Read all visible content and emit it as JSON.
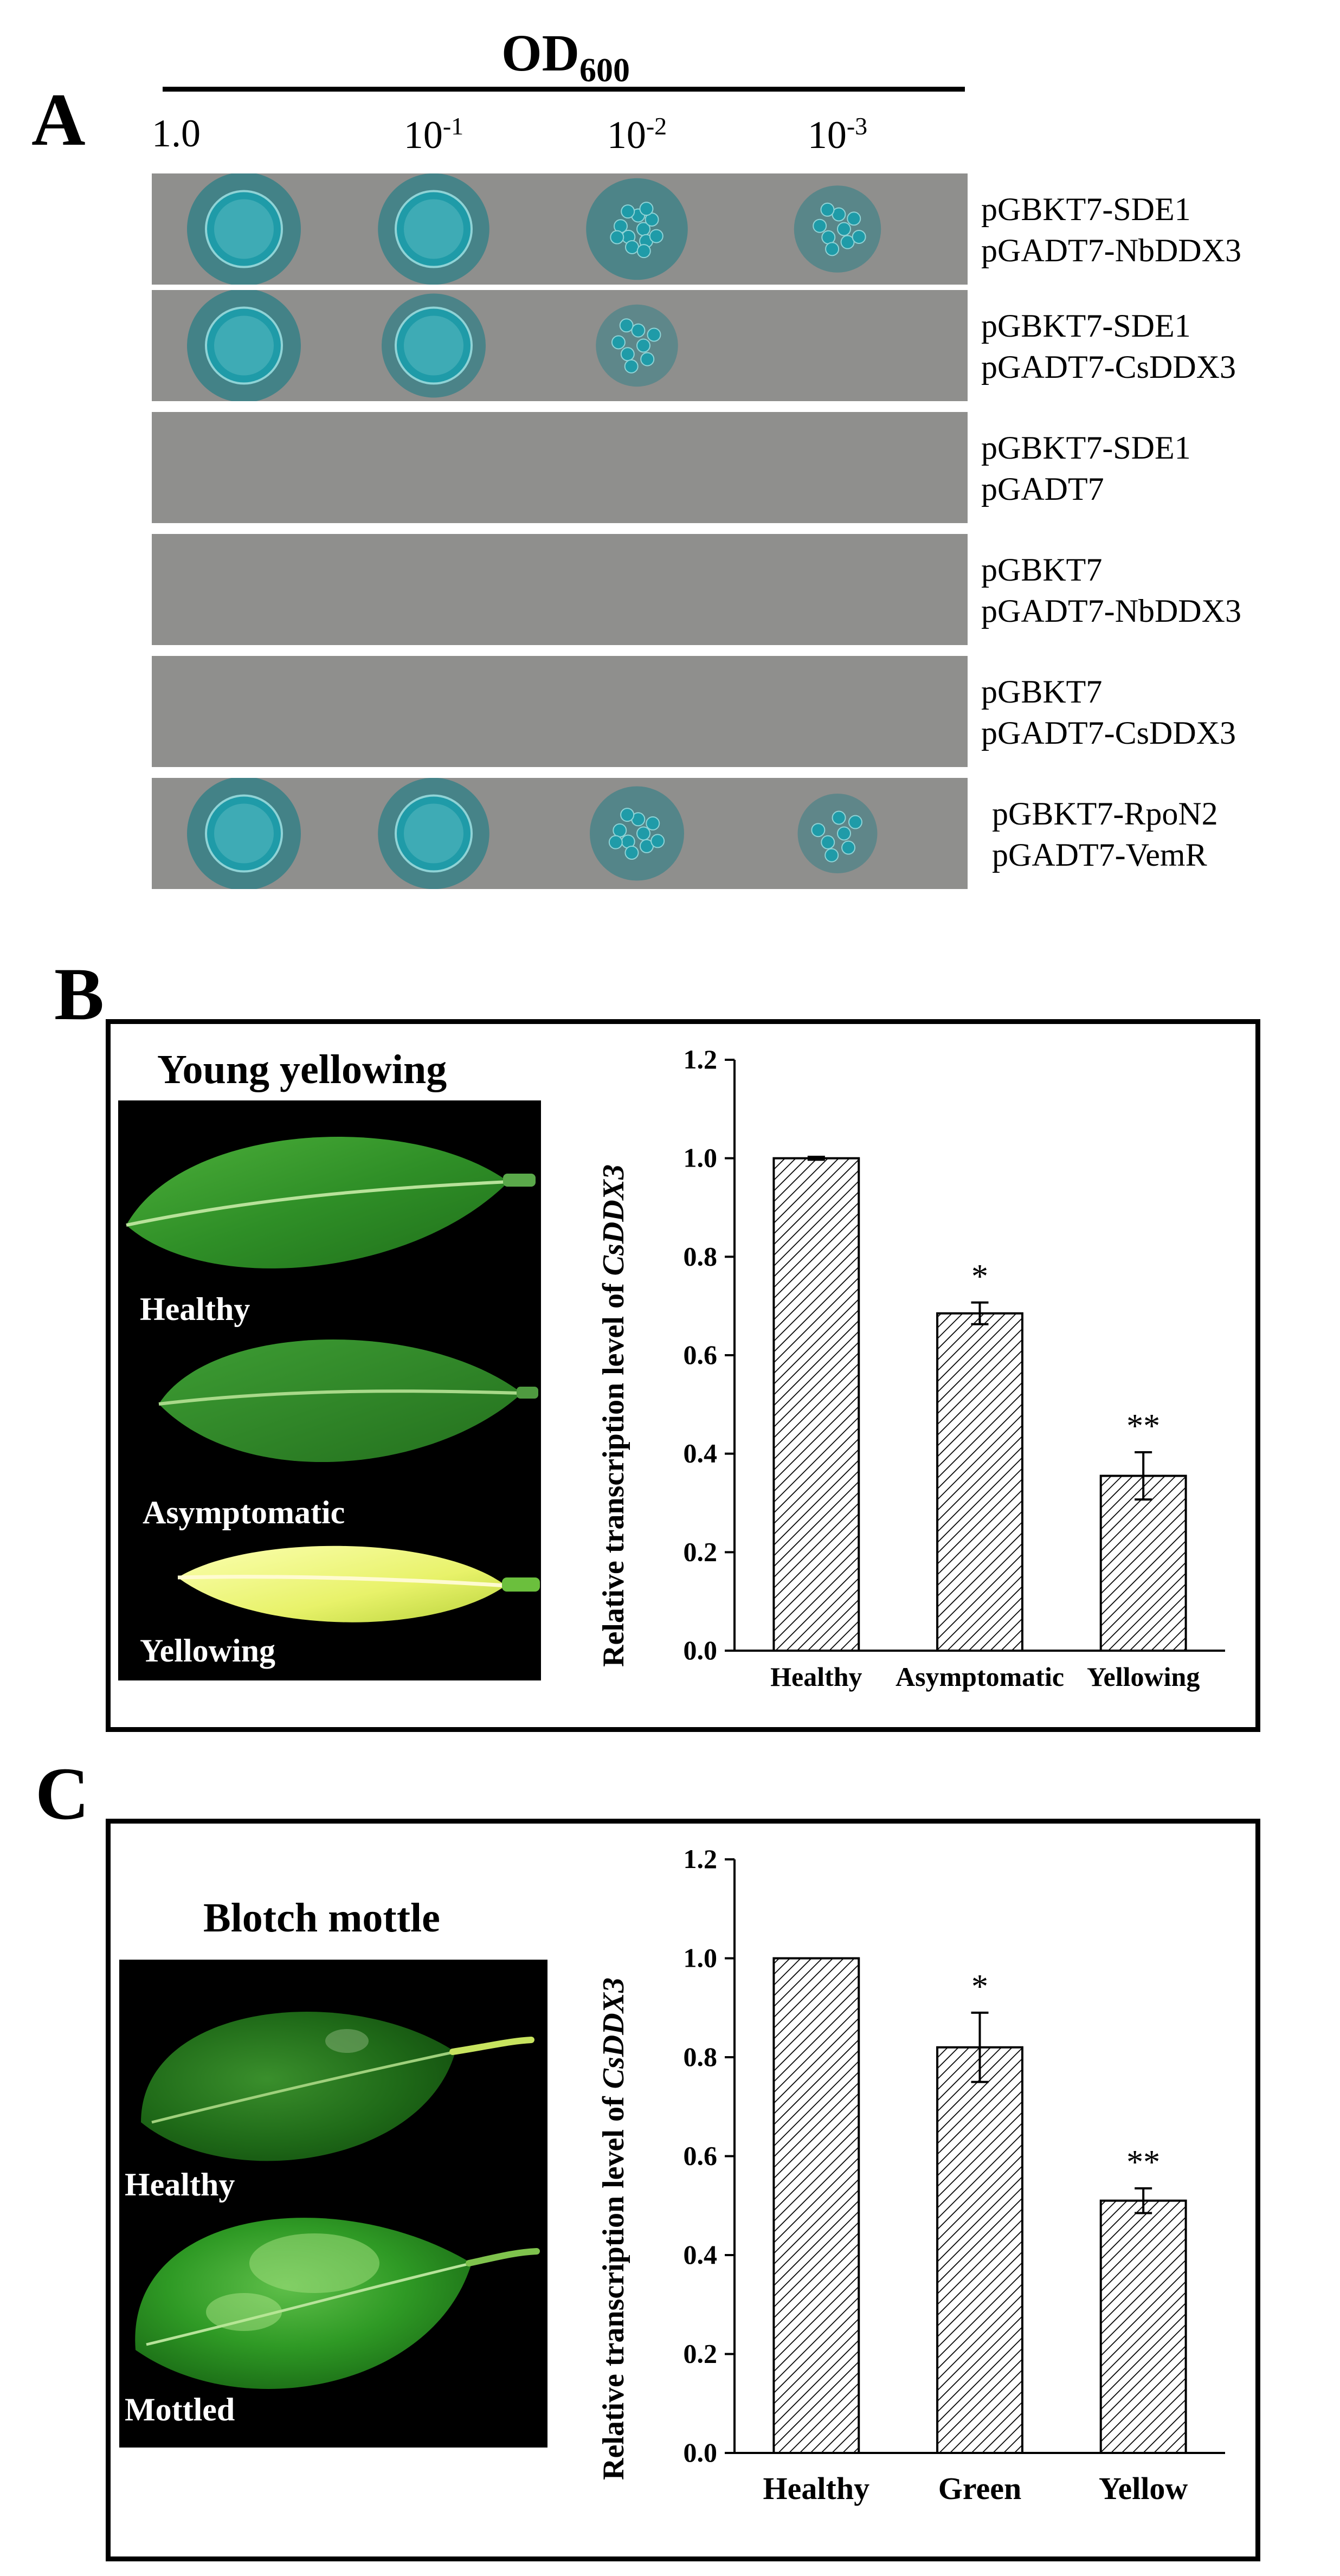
{
  "panel_a": {
    "label": "A",
    "od_label_main": "OD",
    "od_label_sub": "600",
    "dilutions": [
      {
        "base": "1.0",
        "exp": ""
      },
      {
        "base": "10",
        "exp": "-1"
      },
      {
        "base": "10",
        "exp": "-2"
      },
      {
        "base": "10",
        "exp": "-3"
      }
    ],
    "rows": [
      {
        "line1": "pGBKT7-SDE1",
        "line2": "pGADT7-NbDDX3",
        "growth": [
          1,
          0.95,
          0.75,
          0.45
        ]
      },
      {
        "line1": "pGBKT7-SDE1",
        "line2": "pGADT7-CsDDX3",
        "growth": [
          1,
          0.8,
          0.35,
          0
        ]
      },
      {
        "line1": "pGBKT7-SDE1",
        "line2": "pGADT7",
        "growth": [
          0,
          0,
          0,
          0
        ]
      },
      {
        "line1": "pGBKT7",
        "line2": "pGADT7-NbDDX3",
        "growth": [
          0,
          0,
          0,
          0
        ]
      },
      {
        "line1": "pGBKT7",
        "line2": "pGADT7-CsDDX3",
        "growth": [
          0,
          0,
          0,
          0
        ]
      },
      {
        "line1": "pGBKT7-RpoN2",
        "line2": "pGADT7-VemR",
        "growth": [
          1,
          0.95,
          0.6,
          0.3
        ]
      }
    ],
    "colors": {
      "plate": "#8f8f8d",
      "colony": "#1f9ba8",
      "halo": "#2a7e86"
    }
  },
  "panel_b": {
    "label": "B",
    "photo_title": "Young yellowing",
    "leaf_captions": [
      "Healthy",
      "Asymptomatic",
      "Yellowing"
    ]
  },
  "panel_c": {
    "label": "C",
    "photo_title": "Blotch mottle",
    "leaf_captions": [
      "Healthy",
      "Mottled"
    ]
  },
  "chart_data": [
    {
      "type": "bar",
      "panel": "B",
      "ylabel_prefix": "Relative transcription level of ",
      "ylabel_italic": "CsDDX3",
      "categories": [
        "Healthy",
        "Asymptomatic",
        "Yellowing"
      ],
      "values": [
        1.0,
        0.685,
        0.355
      ],
      "errors": [
        0.003,
        0.022,
        0.048
      ],
      "significance": [
        "",
        "*",
        "**"
      ],
      "ylim": [
        0,
        1.2
      ],
      "yticks": [
        "0.0",
        "0.2",
        "0.4",
        "0.6",
        "0.8",
        "1.0",
        "1.2"
      ],
      "grid": false,
      "pattern": "diagonal hatch"
    },
    {
      "type": "bar",
      "panel": "C",
      "ylabel_prefix": "Relative transcription level of ",
      "ylabel_italic": "CsDDX3",
      "categories": [
        "Healthy",
        "Green",
        "Yellow"
      ],
      "values": [
        1.0,
        0.82,
        0.51
      ],
      "errors": [
        0.0,
        0.07,
        0.025
      ],
      "significance": [
        "",
        "*",
        "**"
      ],
      "ylim": [
        0,
        1.2
      ],
      "yticks": [
        "0.0",
        "0.2",
        "0.4",
        "0.6",
        "0.8",
        "1.0",
        "1.2"
      ],
      "grid": false,
      "pattern": "diagonal hatch"
    }
  ]
}
